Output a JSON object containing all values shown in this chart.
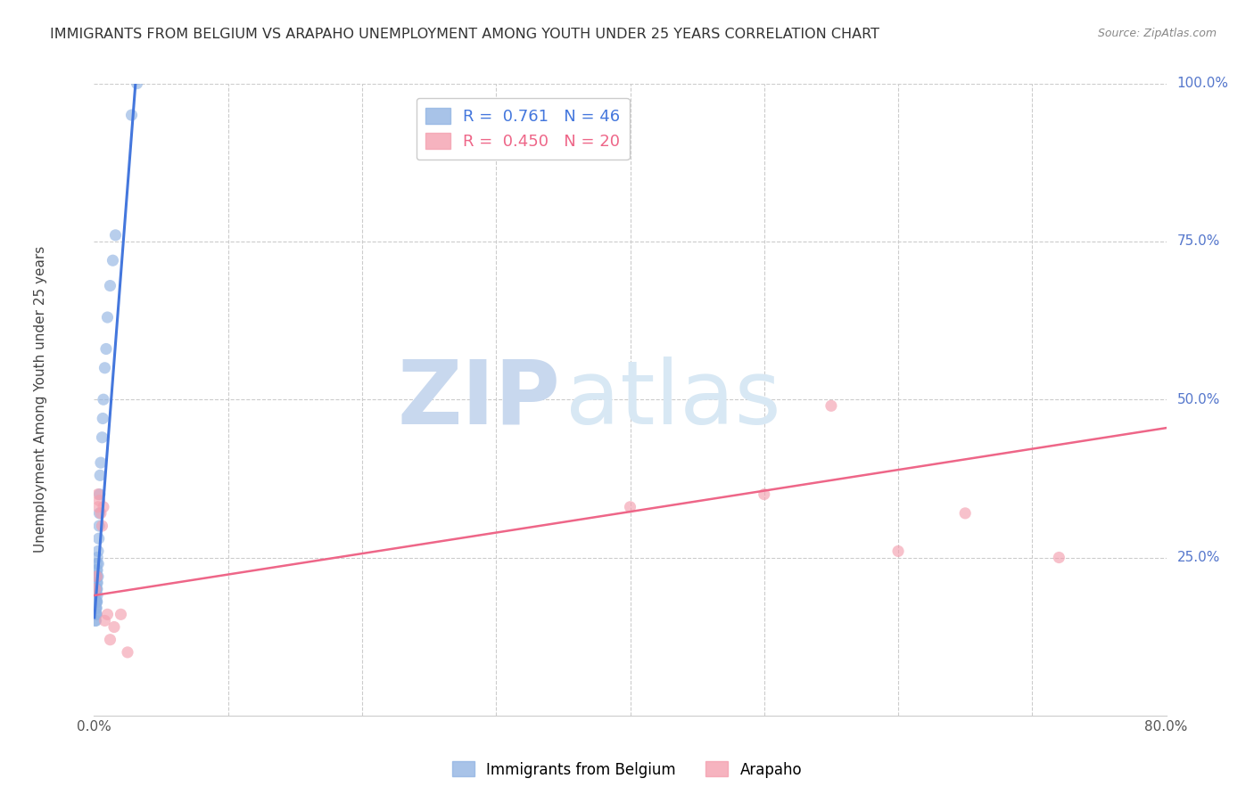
{
  "title": "IMMIGRANTS FROM BELGIUM VS ARAPAHO UNEMPLOYMENT AMONG YOUTH UNDER 25 YEARS CORRELATION CHART",
  "source": "Source: ZipAtlas.com",
  "ylabel": "Unemployment Among Youth under 25 years",
  "xlabel_belgium": "Immigrants from Belgium",
  "xlabel_arapaho": "Arapaho",
  "watermark_zip": "ZIP",
  "watermark_atlas": "atlas",
  "xlim": [
    0.0,
    0.8
  ],
  "ylim": [
    0.0,
    1.0
  ],
  "yticks_right": [
    0.0,
    0.25,
    0.5,
    0.75,
    1.0
  ],
  "yticklabels_right": [
    "",
    "25.0%",
    "50.0%",
    "75.0%",
    "100.0%"
  ],
  "legend_blue_R": "0.761",
  "legend_blue_N": "46",
  "legend_pink_R": "0.450",
  "legend_pink_N": "20",
  "blue_color": "#92B4E3",
  "pink_color": "#F4A0B0",
  "blue_line_color": "#4477DD",
  "pink_line_color": "#EE6688",
  "title_color": "#333333",
  "right_axis_color": "#5577CC",
  "watermark_zip_color": "#C8D8EE",
  "watermark_atlas_color": "#D8E8F4",
  "blue_scatter_x": [
    0.0005,
    0.0008,
    0.001,
    0.001,
    0.0012,
    0.0012,
    0.0014,
    0.0015,
    0.0015,
    0.0016,
    0.0016,
    0.0017,
    0.0018,
    0.0018,
    0.0019,
    0.002,
    0.002,
    0.002,
    0.0022,
    0.0022,
    0.0023,
    0.0023,
    0.0024,
    0.0024,
    0.0025,
    0.0025,
    0.003,
    0.003,
    0.0032,
    0.0035,
    0.0038,
    0.004,
    0.0042,
    0.0045,
    0.005,
    0.006,
    0.0065,
    0.007,
    0.008,
    0.009,
    0.01,
    0.012,
    0.014,
    0.016,
    0.028,
    0.032
  ],
  "blue_scatter_y": [
    0.18,
    0.15,
    0.2,
    0.17,
    0.16,
    0.19,
    0.15,
    0.17,
    0.2,
    0.16,
    0.18,
    0.22,
    0.17,
    0.2,
    0.23,
    0.16,
    0.18,
    0.21,
    0.18,
    0.22,
    0.2,
    0.24,
    0.19,
    0.23,
    0.21,
    0.25,
    0.22,
    0.26,
    0.24,
    0.28,
    0.3,
    0.32,
    0.35,
    0.38,
    0.4,
    0.44,
    0.47,
    0.5,
    0.55,
    0.58,
    0.63,
    0.68,
    0.72,
    0.76,
    0.95,
    1.0
  ],
  "blue_line_x": [
    0.0003,
    0.032
  ],
  "blue_line_y": [
    0.155,
    1.03
  ],
  "pink_scatter_x": [
    0.001,
    0.002,
    0.003,
    0.003,
    0.004,
    0.005,
    0.006,
    0.007,
    0.008,
    0.01,
    0.012,
    0.015,
    0.02,
    0.025,
    0.4,
    0.5,
    0.55,
    0.6,
    0.65,
    0.72
  ],
  "pink_scatter_y": [
    0.2,
    0.22,
    0.33,
    0.35,
    0.34,
    0.32,
    0.3,
    0.33,
    0.15,
    0.16,
    0.12,
    0.14,
    0.16,
    0.1,
    0.33,
    0.35,
    0.49,
    0.26,
    0.32,
    0.25
  ],
  "pink_line_x": [
    0.0,
    0.8
  ],
  "pink_line_y": [
    0.19,
    0.455
  ]
}
